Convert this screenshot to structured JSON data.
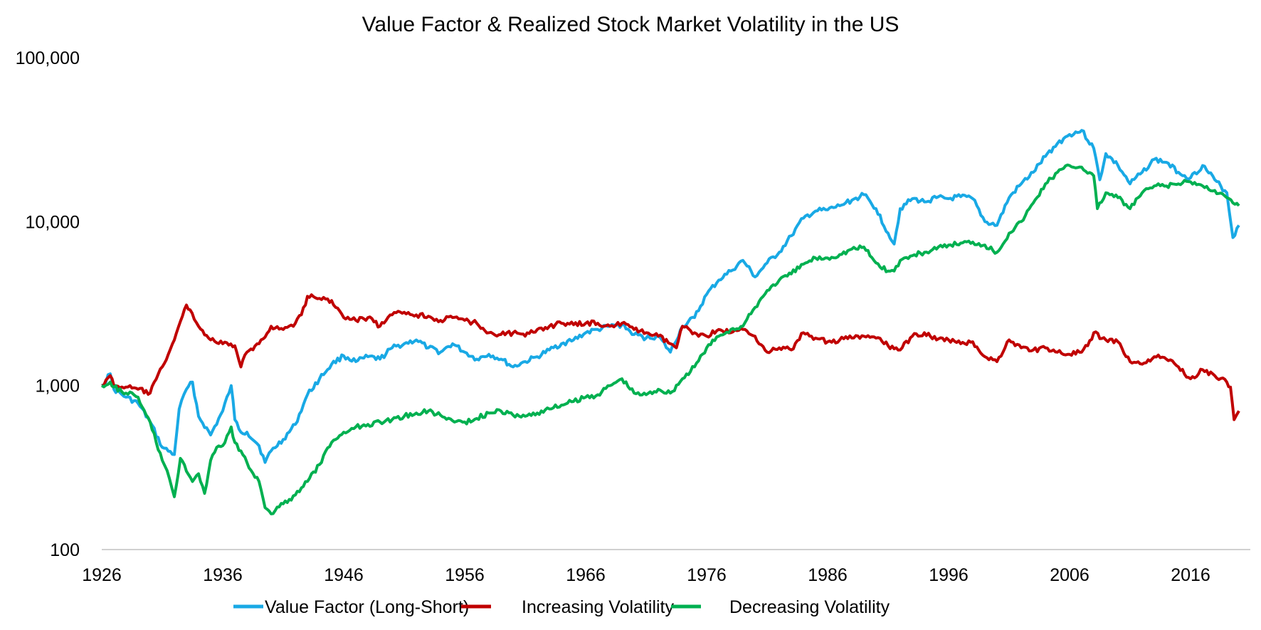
{
  "chart_data": {
    "type": "line",
    "title": "Value Factor & Realized Stock Market Volatility in the US",
    "xlabel": "",
    "ylabel": "",
    "y_scale": "log",
    "ylim": [
      100,
      100000
    ],
    "xlim": [
      1926,
      2020
    ],
    "y_ticks": [
      100,
      1000,
      10000,
      100000
    ],
    "y_tick_labels": [
      "100",
      "1,000",
      "10,000",
      "100,000"
    ],
    "x_ticks": [
      1926,
      1936,
      1946,
      1956,
      1966,
      1976,
      1986,
      1996,
      2006,
      2016
    ],
    "x_tick_labels": [
      "1926",
      "1936",
      "1946",
      "1956",
      "1966",
      "1976",
      "1986",
      "1996",
      "2006",
      "2016"
    ],
    "grid": false,
    "legend_position": "bottom",
    "series": [
      {
        "name": "Value Factor (Long-Short)",
        "color": "#19A9E5",
        "x": [
          1926,
          1926.7,
          1927,
          1928,
          1929,
          1930,
          1931,
          1932,
          1932.4,
          1933,
          1933.5,
          1934,
          1935,
          1936,
          1936.7,
          1937,
          1937.5,
          1938,
          1939,
          1939.5,
          1940,
          1941,
          1942,
          1943,
          1944,
          1945,
          1946,
          1947,
          1948,
          1949,
          1950,
          1951,
          1952,
          1953,
          1954,
          1955,
          1956,
          1957,
          1958,
          1959,
          1960,
          1961,
          1962,
          1963,
          1964,
          1965,
          1966,
          1967,
          1968,
          1969,
          1970,
          1971,
          1972,
          1973,
          1974,
          1975,
          1976,
          1977,
          1978,
          1979,
          1980,
          1981,
          1982,
          1983,
          1984,
          1985,
          1986,
          1987,
          1988,
          1989,
          1990,
          1991,
          1991.5,
          1992,
          1993,
          1994,
          1995,
          1996,
          1997,
          1998,
          1999,
          2000,
          2001,
          2002,
          2003,
          2004,
          2005,
          2006,
          2007,
          2008,
          2008.5,
          2009,
          2010,
          2011,
          2012,
          2013,
          2014,
          2015,
          2016,
          2017,
          2018,
          2019,
          2019.5,
          2020
        ],
        "values": [
          1000,
          1180,
          950,
          850,
          780,
          600,
          420,
          380,
          720,
          950,
          1050,
          650,
          500,
          700,
          1000,
          620,
          520,
          520,
          430,
          340,
          400,
          470,
          580,
          880,
          1100,
          1350,
          1520,
          1400,
          1500,
          1450,
          1700,
          1800,
          1900,
          1700,
          1600,
          1800,
          1600,
          1450,
          1550,
          1450,
          1300,
          1400,
          1500,
          1650,
          1800,
          1900,
          2100,
          2200,
          2300,
          2350,
          2050,
          1950,
          2000,
          1600,
          2300,
          2600,
          3600,
          4400,
          5000,
          5800,
          4600,
          5600,
          6500,
          8200,
          10500,
          11600,
          11800,
          12500,
          13500,
          14600,
          12000,
          8500,
          7300,
          12000,
          13800,
          13200,
          14000,
          13800,
          14200,
          13800,
          10000,
          9500,
          14000,
          17000,
          20000,
          25000,
          30000,
          34000,
          36000,
          28000,
          18000,
          26000,
          22000,
          17000,
          20000,
          24000,
          23000,
          20000,
          18500,
          22000,
          18000,
          15000,
          8000,
          9500
        ]
      },
      {
        "name": "Increasing Volatility",
        "color": "#C00000",
        "x": [
          1926,
          1926.7,
          1927,
          1928,
          1929,
          1930,
          1931,
          1932,
          1933,
          1933.3,
          1934,
          1935,
          1936,
          1937,
          1937.5,
          1938,
          1939,
          1940,
          1941,
          1942,
          1942.5,
          1943,
          1944,
          1945,
          1946,
          1947,
          1948,
          1949,
          1950,
          1951,
          1952,
          1953,
          1954,
          1955,
          1956,
          1957,
          1958,
          1959,
          1960,
          1961,
          1962,
          1963,
          1964,
          1965,
          1966,
          1967,
          1968,
          1969,
          1970,
          1971,
          1972,
          1973,
          1973.5,
          1974,
          1975,
          1976,
          1977,
          1978,
          1979,
          1980,
          1981,
          1982,
          1983,
          1984,
          1985,
          1986,
          1987,
          1988,
          1989,
          1990,
          1991,
          1992,
          1993,
          1994,
          1995,
          1996,
          1997,
          1998,
          1999,
          2000,
          2001,
          2002,
          2003,
          2004,
          2005,
          2006,
          2007,
          2007.5,
          2008,
          2009,
          2010,
          2011,
          2012,
          2013,
          2014,
          2015,
          2016,
          2017,
          2018,
          2019,
          2019.3,
          2019.6,
          2020
        ],
        "values": [
          1000,
          1150,
          1000,
          980,
          950,
          900,
          1300,
          1900,
          3100,
          2900,
          2300,
          1900,
          1800,
          1750,
          1300,
          1600,
          1800,
          2300,
          2200,
          2400,
          2700,
          3500,
          3400,
          3300,
          2600,
          2500,
          2600,
          2300,
          2700,
          2800,
          2700,
          2650,
          2500,
          2600,
          2500,
          2400,
          2100,
          2050,
          2100,
          2000,
          2200,
          2300,
          2400,
          2350,
          2400,
          2400,
          2300,
          2400,
          2200,
          2100,
          2000,
          1800,
          1700,
          2300,
          2100,
          2000,
          2200,
          2100,
          2200,
          2000,
          1600,
          1700,
          1650,
          2100,
          1950,
          1850,
          1900,
          1950,
          2000,
          1950,
          1750,
          1650,
          2000,
          2100,
          1900,
          1900,
          1800,
          1850,
          1500,
          1400,
          1900,
          1700,
          1650,
          1700,
          1600,
          1550,
          1600,
          1750,
          2100,
          1900,
          1850,
          1400,
          1350,
          1500,
          1450,
          1300,
          1100,
          1250,
          1150,
          1050,
          980,
          620,
          700
        ]
      },
      {
        "name": "Decreasing Volatility",
        "color": "#00B050",
        "x": [
          1926,
          1926.7,
          1927,
          1928,
          1929,
          1930,
          1930.5,
          1931,
          1931.6,
          1932,
          1932.5,
          1933,
          1933.5,
          1934,
          1934.5,
          1935,
          1935.5,
          1936,
          1936.7,
          1937,
          1937.5,
          1938,
          1939,
          1939.5,
          1940,
          1941,
          1942,
          1943,
          1944,
          1945,
          1946,
          1947,
          1948,
          1949,
          1950,
          1951,
          1952,
          1953,
          1954,
          1955,
          1956,
          1957,
          1958,
          1959,
          1960,
          1961,
          1962,
          1963,
          1964,
          1965,
          1966,
          1967,
          1968,
          1969,
          1970,
          1971,
          1972,
          1973,
          1974,
          1975,
          1976,
          1977,
          1978,
          1979,
          1980,
          1981,
          1982,
          1983,
          1984,
          1985,
          1986,
          1987,
          1988,
          1989,
          1990,
          1991,
          1991.5,
          1992,
          1993,
          1994,
          1995,
          1996,
          1997,
          1998,
          1999,
          2000,
          2001,
          2002,
          2003,
          2004,
          2005,
          2006,
          2007,
          2008,
          2008.3,
          2009,
          2010,
          2011,
          2012,
          2013,
          2014,
          2015,
          2016,
          2017,
          2018,
          2019,
          2019.5,
          2020
        ],
        "values": [
          1000,
          1050,
          980,
          900,
          850,
          600,
          450,
          350,
          270,
          210,
          360,
          300,
          260,
          290,
          220,
          350,
          420,
          430,
          560,
          450,
          400,
          340,
          260,
          180,
          165,
          190,
          215,
          260,
          330,
          450,
          520,
          560,
          580,
          600,
          620,
          650,
          680,
          700,
          660,
          610,
          600,
          630,
          680,
          700,
          660,
          650,
          680,
          720,
          760,
          800,
          850,
          880,
          1000,
          1100,
          900,
          880,
          950,
          900,
          1100,
          1300,
          1700,
          2000,
          2200,
          2300,
          3000,
          3800,
          4400,
          4800,
          5500,
          6000,
          6000,
          6300,
          6800,
          7000,
          5600,
          5000,
          5000,
          5800,
          6200,
          6500,
          6800,
          7200,
          7400,
          7500,
          7200,
          6500,
          8500,
          10000,
          13000,
          17000,
          20000,
          22000,
          21500,
          19000,
          12000,
          15000,
          14000,
          12000,
          15000,
          16500,
          16500,
          17000,
          17500,
          16500,
          15500,
          14000,
          13000,
          12500
        ]
      }
    ]
  }
}
